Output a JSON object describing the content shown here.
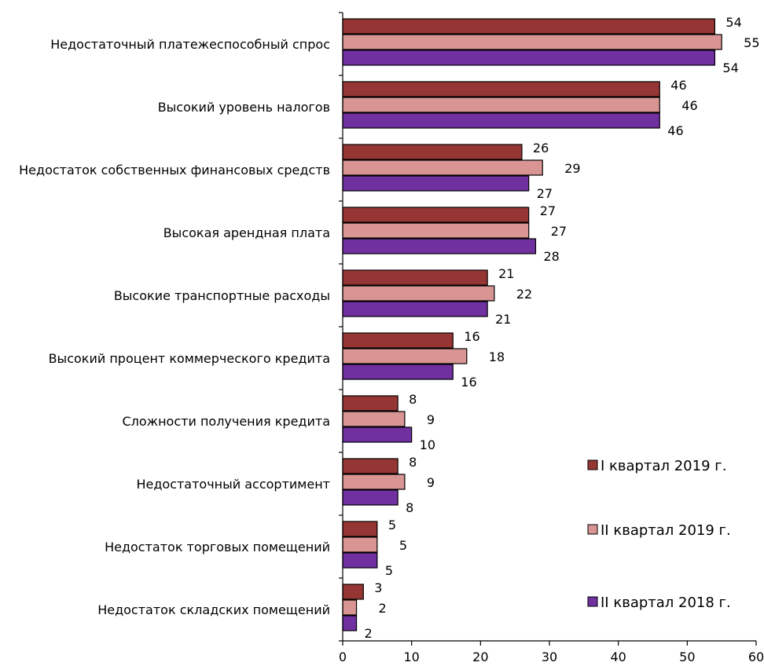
{
  "chart_data": {
    "type": "bar",
    "orientation": "horizontal",
    "categories": [
      "Недостаточный платежеспособный спрос",
      "Высокий уровень налогов",
      "Недостаток собственных финансовых средств",
      "Высокая арендная плата",
      "Высокие транспортные расходы",
      "Высокий процент коммерческого кредита",
      "Сложности получения кредита",
      "Недостаточный ассортимент",
      "Недостаток торговых помещений",
      "Недостаток складских помещений"
    ],
    "series": [
      {
        "name": "I квартал 2019 г.",
        "color": "#963634",
        "values": [
          54,
          46,
          26,
          27,
          21,
          16,
          8,
          8,
          5,
          3
        ]
      },
      {
        "name": "II квартал 2019 г.",
        "color": "#d99594",
        "values": [
          55,
          46,
          29,
          27,
          22,
          18,
          9,
          9,
          5,
          2
        ]
      },
      {
        "name": "II квартал 2018 г.",
        "color": "#7030a0",
        "values": [
          54,
          46,
          27,
          28,
          21,
          16,
          10,
          8,
          5,
          2
        ]
      }
    ],
    "xlim": [
      0,
      60
    ],
    "xticks": [
      0,
      10,
      20,
      30,
      40,
      50,
      60
    ],
    "legend_position": "right",
    "grid": false
  }
}
